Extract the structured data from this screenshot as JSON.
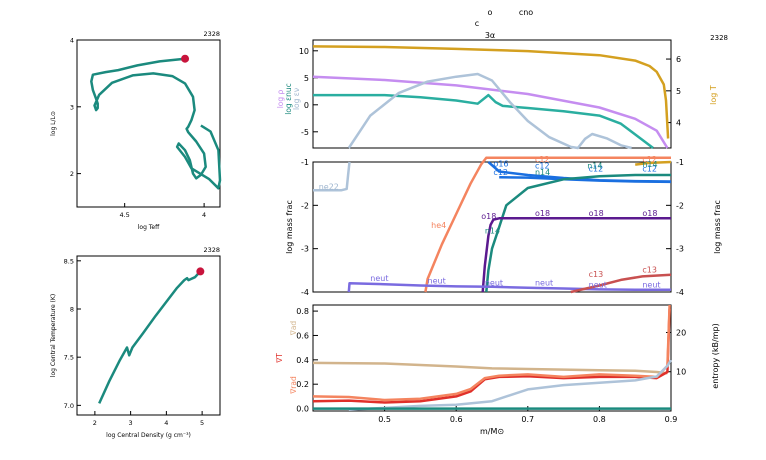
{
  "header": {
    "line1_a": "o",
    "line1_b": "cno",
    "line2": "c",
    "line3": "3α"
  },
  "chart_data": [
    {
      "id": "hr",
      "type": "line",
      "model_number": "2328",
      "xlabel": "log Teff",
      "ylabel": "log L/L⊙",
      "xlim": [
        4.8,
        3.9
      ],
      "ylim": [
        1.5,
        4.0
      ],
      "xticks": [
        4.5,
        4.0
      ],
      "yticks": [
        2,
        3,
        4
      ],
      "color": "#1b8a7e",
      "marker_color": "#c8143c",
      "x": [
        4.12,
        4.28,
        4.42,
        4.54,
        4.62,
        4.7,
        4.71,
        4.7,
        4.68,
        4.67,
        4.67,
        4.68,
        4.69,
        4.66,
        4.58,
        4.45,
        4.32,
        4.2,
        4.12,
        4.07,
        4.06,
        4.08,
        4.1,
        4.11,
        4.1,
        4.05,
        4.0,
        3.99,
        4.02,
        4.05,
        4.07,
        4.09,
        4.12,
        4.16,
        4.17,
        4.12,
        4.08,
        3.97,
        3.91,
        3.9,
        3.91,
        3.96,
        4.02
      ],
      "y": [
        3.72,
        3.68,
        3.62,
        3.55,
        3.52,
        3.48,
        3.38,
        3.25,
        3.12,
        3.05,
        2.98,
        2.95,
        3.02,
        3.18,
        3.36,
        3.47,
        3.5,
        3.46,
        3.35,
        3.15,
        2.95,
        2.8,
        2.7,
        2.67,
        2.62,
        2.48,
        2.3,
        2.1,
        1.98,
        1.93,
        2.0,
        2.2,
        2.35,
        2.45,
        2.4,
        2.25,
        2.08,
        1.92,
        1.78,
        1.9,
        2.35,
        2.63,
        2.72
      ],
      "marker": [
        4.12,
        3.72
      ]
    },
    {
      "id": "center",
      "type": "line",
      "model_number": "2328",
      "xlabel": "log Central Density (g cm⁻³)",
      "ylabel": "log Central Temperature (K)",
      "xlim": [
        1.5,
        5.5
      ],
      "ylim": [
        6.9,
        8.55
      ],
      "xticks": [
        2,
        3,
        4,
        5
      ],
      "yticks": [
        7.0,
        7.5,
        8.0,
        8.5
      ],
      "xticklabels": [
        "2",
        "3",
        "4",
        "5"
      ],
      "yticklabels": [
        "7.0",
        "7.5",
        "8",
        "8.5"
      ],
      "color": "#1b8a7e",
      "marker_color": "#c8143c",
      "x": [
        2.12,
        2.4,
        2.7,
        2.9,
        2.96,
        3.05,
        3.35,
        3.7,
        4.05,
        4.3,
        4.5,
        4.58,
        4.62,
        4.68,
        4.8,
        4.95
      ],
      "y": [
        7.02,
        7.25,
        7.47,
        7.6,
        7.52,
        7.6,
        7.75,
        7.93,
        8.1,
        8.22,
        8.3,
        8.32,
        8.3,
        8.31,
        8.33,
        8.39
      ],
      "marker": [
        4.95,
        8.39
      ]
    },
    {
      "id": "top_profile",
      "type": "line",
      "model_number": "2328",
      "xlim": [
        0.4,
        0.9
      ],
      "ylim": [
        -8,
        12
      ],
      "yticks": [
        -5,
        0,
        5,
        10
      ],
      "right_ylim": [
        3.2,
        6.6
      ],
      "right_yticks": [
        4,
        5,
        6
      ],
      "ylabels_left": [
        {
          "text": "log ρ",
          "color": "#c58df0"
        },
        {
          "text": "log εnuc",
          "color": "#1b8a7e"
        },
        {
          "text": "log εν",
          "color": "#9fb6cf"
        }
      ],
      "ylabel_right": {
        "text": "log T",
        "color": "#d4a020"
      },
      "series": [
        {
          "name": "log T",
          "axis": "right",
          "color": "#d4a020",
          "x": [
            0.4,
            0.5,
            0.6,
            0.7,
            0.8,
            0.85,
            0.87,
            0.88,
            0.89,
            0.893,
            0.896
          ],
          "y": [
            6.4,
            6.38,
            6.32,
            6.25,
            6.12,
            5.95,
            5.78,
            5.6,
            5.2,
            4.7,
            3.5
          ]
        },
        {
          "name": "log ρ",
          "axis": "left",
          "color": "#c58df0",
          "x": [
            0.4,
            0.5,
            0.6,
            0.7,
            0.8,
            0.85,
            0.88,
            0.895
          ],
          "y": [
            5.2,
            4.6,
            3.6,
            2.0,
            -0.5,
            -2.6,
            -4.8,
            -8
          ]
        },
        {
          "name": "log εnuc",
          "axis": "left",
          "color": "#2aaea0",
          "x": [
            0.4,
            0.5,
            0.55,
            0.6,
            0.63,
            0.645,
            0.655,
            0.665,
            0.7,
            0.75,
            0.8,
            0.83,
            0.86,
            0.875
          ],
          "y": [
            1.8,
            1.8,
            1.4,
            0.8,
            0.2,
            1.8,
            0.5,
            -0.2,
            -0.6,
            -1.2,
            -2.0,
            -3.5,
            -6.5,
            -8
          ]
        },
        {
          "name": "log εν",
          "axis": "left",
          "color": "#aec3d9",
          "x": [
            0.45,
            0.48,
            0.52,
            0.56,
            0.6,
            0.63,
            0.65,
            0.675,
            0.7,
            0.73,
            0.76,
            0.77,
            0.78,
            0.79,
            0.81,
            0.83,
            0.845
          ],
          "y": [
            -8,
            -2,
            2.2,
            4.3,
            5.2,
            5.7,
            4.5,
            0.5,
            -3,
            -6,
            -7.8,
            -8,
            -6.3,
            -5.4,
            -6.2,
            -7.5,
            -8
          ]
        }
      ]
    },
    {
      "id": "abund_profile",
      "type": "line",
      "model_number": "",
      "xlim": [
        0.4,
        0.9
      ],
      "ylim": [
        -4,
        -1
      ],
      "yticks": [
        -4,
        -3,
        -2,
        -1
      ],
      "right_yticks": [
        -4,
        -3,
        -2,
        -1
      ],
      "ylabel": "log mass frac",
      "ylabel_right": "log mass frac",
      "series": [
        {
          "name": "he4",
          "color": "#f4845f",
          "x": [
            0.557,
            0.56,
            0.58,
            0.6,
            0.62,
            0.635,
            0.642,
            0.7,
            0.8,
            0.9
          ],
          "y": [
            -4,
            -3.7,
            -2.9,
            -2.2,
            -1.5,
            -1.05,
            -0.9,
            -0.9,
            -0.9,
            -0.9
          ]
        },
        {
          "name": "ne22",
          "color": "#aec3d9",
          "x": [
            0.4,
            0.44,
            0.447,
            0.449,
            0.451
          ],
          "y": [
            -1.65,
            -1.65,
            -1.62,
            -1.3,
            -1.0
          ]
        },
        {
          "name": "o16",
          "color": "#1a6fe0",
          "x": [
            0.645,
            0.66,
            0.7,
            0.75,
            0.8,
            0.85,
            0.9
          ],
          "y": [
            -1.0,
            -1.22,
            -1.3,
            -1.37,
            -1.42,
            -1.44,
            -1.45
          ]
        },
        {
          "name": "c12",
          "color": "#1a6fe0",
          "x": [
            0.66,
            0.7,
            0.75,
            0.8,
            0.85,
            0.9
          ],
          "y": [
            -1.35,
            -1.36,
            -1.4,
            -1.43,
            -1.45,
            -1.46
          ]
        },
        {
          "name": "n14",
          "color": "#1b8a7e",
          "x": [
            0.642,
            0.645,
            0.65,
            0.66,
            0.67,
            0.7,
            0.75,
            0.8,
            0.85,
            0.9
          ],
          "y": [
            -4,
            -3.5,
            -3.0,
            -2.5,
            -2.0,
            -1.6,
            -1.4,
            -1.33,
            -1.3,
            -1.3
          ]
        },
        {
          "name": "o18",
          "color": "#5b1a8f",
          "x": [
            0.637,
            0.64,
            0.645,
            0.648,
            0.652,
            0.66,
            0.7,
            0.8,
            0.9
          ],
          "y": [
            -4,
            -3.4,
            -2.7,
            -2.45,
            -2.33,
            -2.3,
            -2.3,
            -2.3,
            -2.3
          ]
        },
        {
          "name": "neut",
          "color": "#7a6be0",
          "x": [
            0.45,
            0.451,
            0.5,
            0.55,
            0.6,
            0.65,
            0.7,
            0.75,
            0.8,
            0.85,
            0.9
          ],
          "y": [
            -4,
            -3.8,
            -3.82,
            -3.85,
            -3.87,
            -3.88,
            -3.9,
            -3.92,
            -3.94,
            -3.95,
            -3.95
          ]
        },
        {
          "name": "c13",
          "color": "#c85050",
          "x": [
            0.76,
            0.8,
            0.83,
            0.86,
            0.9
          ],
          "y": [
            -4,
            -3.85,
            -3.72,
            -3.64,
            -3.6
          ]
        },
        {
          "name": "c12",
          "color": "#d4a020",
          "x": [
            0.85,
            0.87,
            0.9
          ],
          "y": [
            -1.06,
            -1.02,
            -1.0
          ]
        }
      ],
      "labels": [
        {
          "text": "ne22",
          "x": 0.408,
          "y": -1.63,
          "color": "#9fb6cf"
        },
        {
          "text": "he4",
          "x": 0.565,
          "y": -2.52,
          "color": "#f4845f"
        },
        {
          "text": "o16",
          "x": 0.652,
          "y": -1.1,
          "color": "#1a6fe0"
        },
        {
          "text": "c12",
          "x": 0.652,
          "y": -1.3,
          "color": "#1a6fe0"
        },
        {
          "text": "c12",
          "x": 0.71,
          "y": -1.0,
          "color": "#f4845f"
        },
        {
          "text": "c12",
          "x": 0.71,
          "y": -1.15,
          "color": "#1a6fe0"
        },
        {
          "text": "n14",
          "x": 0.71,
          "y": -1.3,
          "color": "#1b8a7e"
        },
        {
          "text": "c12",
          "x": 0.785,
          "y": -1.22,
          "color": "#1a6fe0"
        },
        {
          "text": "n14",
          "x": 0.783,
          "y": -1.15,
          "color": "#1b8a7e"
        },
        {
          "text": "c12",
          "x": 0.86,
          "y": -1.0,
          "color": "#f4845f"
        },
        {
          "text": "c12",
          "x": 0.86,
          "y": -1.22,
          "color": "#1a6fe0"
        },
        {
          "text": "n14",
          "x": 0.86,
          "y": -1.12,
          "color": "#1b8a7e"
        },
        {
          "text": "o18",
          "x": 0.635,
          "y": -2.32,
          "color": "#5b1a8f"
        },
        {
          "text": "o18",
          "x": 0.71,
          "y": -2.25,
          "color": "#5b1a8f"
        },
        {
          "text": "o18",
          "x": 0.785,
          "y": -2.25,
          "color": "#5b1a8f"
        },
        {
          "text": "o18",
          "x": 0.86,
          "y": -2.25,
          "color": "#5b1a8f"
        },
        {
          "text": "n14",
          "x": 0.64,
          "y": -2.65,
          "color": "#1b8a7e"
        },
        {
          "text": "neut",
          "x": 0.48,
          "y": -3.75,
          "color": "#7a6be0"
        },
        {
          "text": "neut",
          "x": 0.56,
          "y": -3.8,
          "color": "#7a6be0"
        },
        {
          "text": "neut",
          "x": 0.64,
          "y": -3.85,
          "color": "#7a6be0"
        },
        {
          "text": "neut",
          "x": 0.71,
          "y": -3.85,
          "color": "#7a6be0"
        },
        {
          "text": "neut",
          "x": 0.785,
          "y": -3.9,
          "color": "#7a6be0"
        },
        {
          "text": "neut",
          "x": 0.86,
          "y": -3.9,
          "color": "#7a6be0"
        },
        {
          "text": "c13",
          "x": 0.785,
          "y": -3.65,
          "color": "#c85050"
        },
        {
          "text": "c13",
          "x": 0.86,
          "y": -3.55,
          "color": "#c85050"
        }
      ]
    },
    {
      "id": "grad_profile",
      "type": "line",
      "model_number": "",
      "xlabel": "m/M⊙",
      "xlim": [
        0.4,
        0.9
      ],
      "xticks": [
        0.5,
        0.6,
        0.7,
        0.8,
        0.9
      ],
      "xticklabels": [
        "0.5",
        "0.6",
        "0.7",
        "0.8",
        "0.9"
      ],
      "ylim": [
        -0.02,
        0.85
      ],
      "yticks": [
        0.0,
        0.2,
        0.4,
        0.6,
        0.8
      ],
      "yticklabels": [
        "0.0",
        "0.2",
        "0.4",
        "0.6",
        "0.8"
      ],
      "right_ylim": [
        0,
        27
      ],
      "right_yticks": [
        10,
        20
      ],
      "ylabels_left": [
        {
          "text": "∇ad",
          "color": "#d2b48c"
        },
        {
          "text": "∇T",
          "color": "#e0302a"
        },
        {
          "text": "∇rad",
          "color": "#f4845f"
        }
      ],
      "ylabel_right": {
        "text": "entropy (kB/mp)",
        "color": "#000000"
      },
      "series": [
        {
          "name": "∇ad",
          "axis": "left",
          "color": "#d2b48c",
          "x": [
            0.4,
            0.5,
            0.6,
            0.65,
            0.7,
            0.75,
            0.8,
            0.85,
            0.88,
            0.895
          ],
          "y": [
            0.375,
            0.37,
            0.345,
            0.33,
            0.325,
            0.32,
            0.315,
            0.31,
            0.3,
            0.29
          ]
        },
        {
          "name": "∇T",
          "axis": "left",
          "color": "#e0302a",
          "x": [
            0.4,
            0.45,
            0.5,
            0.55,
            0.6,
            0.62,
            0.64,
            0.66,
            0.7,
            0.75,
            0.8,
            0.85,
            0.88,
            0.895,
            0.898
          ],
          "y": [
            0.06,
            0.065,
            0.05,
            0.06,
            0.1,
            0.14,
            0.24,
            0.26,
            0.265,
            0.25,
            0.26,
            0.26,
            0.25,
            0.3,
            0.82
          ]
        },
        {
          "name": "∇rad",
          "axis": "left",
          "color": "#f4845f",
          "x": [
            0.4,
            0.45,
            0.5,
            0.55,
            0.6,
            0.62,
            0.64,
            0.66,
            0.7,
            0.75,
            0.8,
            0.85,
            0.88,
            0.895,
            0.898
          ],
          "y": [
            0.1,
            0.095,
            0.07,
            0.08,
            0.12,
            0.16,
            0.25,
            0.27,
            0.28,
            0.26,
            0.28,
            0.27,
            0.26,
            0.35,
            0.85
          ]
        },
        {
          "name": "entropy",
          "axis": "right",
          "color": "#aec3d9",
          "x": [
            0.45,
            0.5,
            0.55,
            0.6,
            0.65,
            0.7,
            0.75,
            0.8,
            0.85,
            0.88,
            0.895,
            0.9
          ],
          "y": [
            0.3,
            0.8,
            1.3,
            1.6,
            2.5,
            5.5,
            6.6,
            7.2,
            7.8,
            8.8,
            11.5,
            13
          ]
        },
        {
          "name": "zero",
          "axis": "left",
          "color": "#1b8a7e",
          "x": [
            0.4,
            0.9
          ],
          "y": [
            0.0,
            0.0
          ]
        }
      ]
    }
  ]
}
